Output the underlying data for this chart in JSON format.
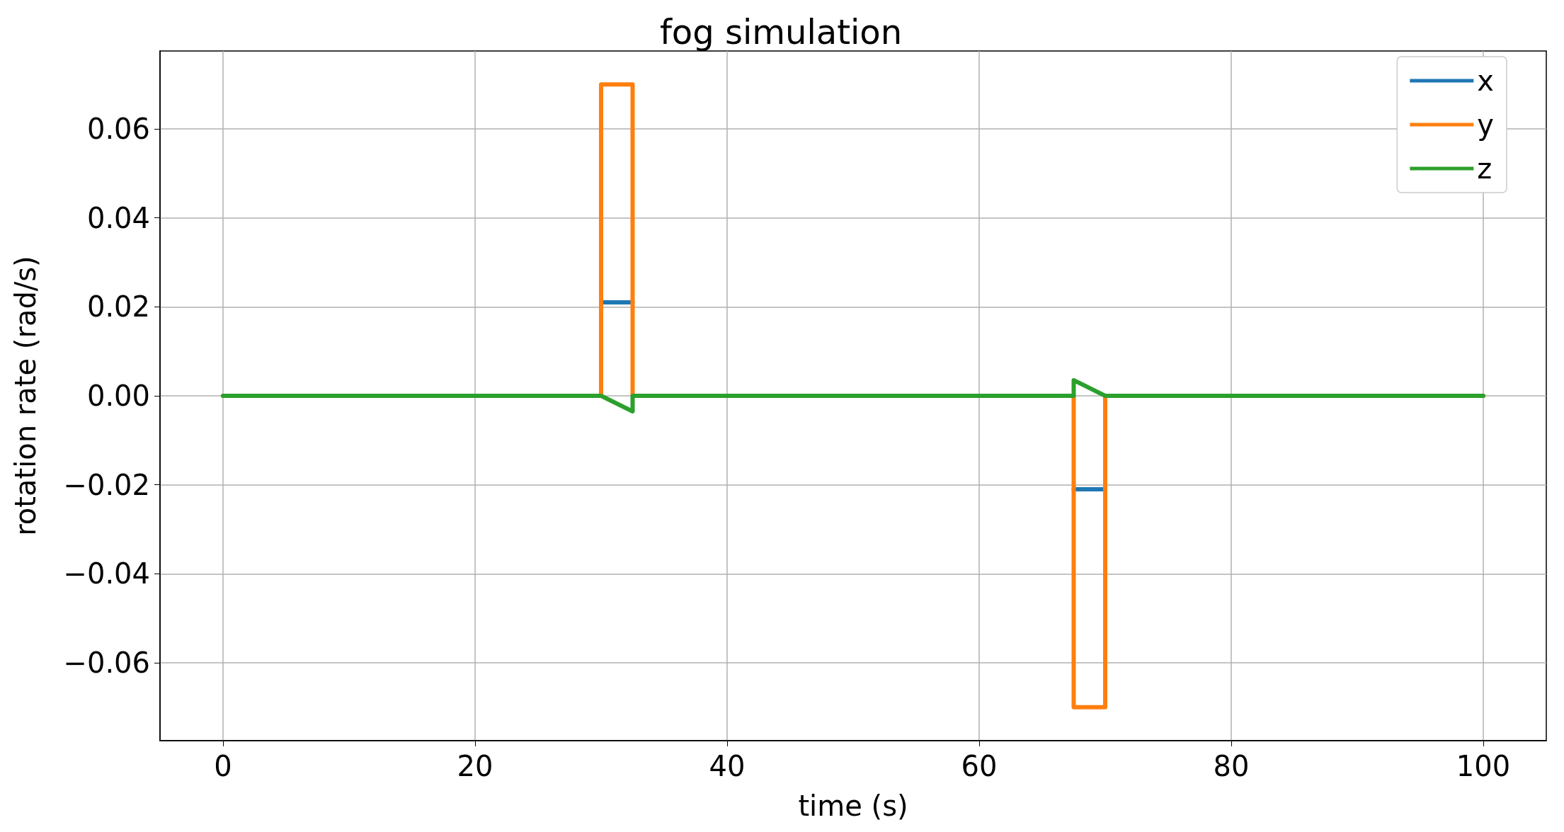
{
  "chart_data": {
    "type": "line",
    "title": "fog simulation",
    "xlabel": "time (s)",
    "ylabel": "rotation rate (rad/s)",
    "xlim": [
      -5,
      105
    ],
    "xticks": [
      0,
      20,
      40,
      60,
      80,
      100
    ],
    "ylim": [
      -0.0775,
      0.0775
    ],
    "yticks": [
      -0.06,
      -0.04,
      -0.02,
      {
        "value": 0,
        "label": "0.00"
      },
      0.02,
      0.04,
      0.06
    ],
    "grid": true,
    "legend": "top right",
    "line_style": "solid",
    "marker": "none",
    "series": [
      {
        "name": "x",
        "color": "#1f77b4",
        "x": [
          30,
          32.5,
          50,
          67.5,
          70
        ],
        "values": [
          0.021,
          0.021,
          null,
          -0.021,
          -0.021
        ]
      },
      {
        "name": "y",
        "color": "#ff7f0e",
        "x": [
          0,
          30,
          30,
          32.5,
          32.5,
          67.5,
          67.5,
          70,
          70,
          100
        ],
        "values": [
          0,
          0,
          0.07,
          0.07,
          0,
          0,
          -0.07,
          -0.07,
          0,
          0
        ]
      },
      {
        "name": "z",
        "color": "#2ca02c",
        "x": [
          0,
          30,
          32.5,
          32.5,
          67.5,
          67.5,
          70,
          100
        ],
        "values": [
          0,
          0,
          -0.0035,
          0,
          0,
          0.0035,
          0,
          0
        ]
      }
    ]
  }
}
